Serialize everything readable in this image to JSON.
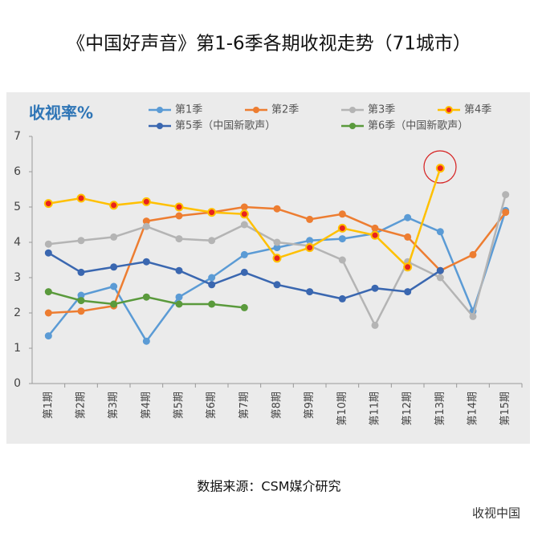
{
  "chart_data": {
    "type": "line",
    "title": "《中国好声音》第1-6季各期收视走势（71城市）",
    "y_label": "收视率%",
    "source": "数据来源：CSM媒介研究",
    "watermark": "收视中国",
    "categories": [
      "第1期",
      "第2期",
      "第3期",
      "第4期",
      "第5期",
      "第6期",
      "第7期",
      "第8期",
      "第9期",
      "第10期",
      "第11期",
      "第12期",
      "第13期",
      "第14期",
      "第15期"
    ],
    "ylim": [
      0,
      7
    ],
    "yticks": [
      0,
      1,
      2,
      3,
      4,
      5,
      6,
      7
    ],
    "grid": false,
    "series": [
      {
        "name": "第1季",
        "color": "#5b9bd5",
        "values": [
          1.35,
          2.5,
          2.75,
          1.2,
          2.45,
          3.0,
          3.65,
          3.85,
          4.05,
          4.1,
          4.25,
          4.7,
          4.3,
          2.05,
          4.9
        ]
      },
      {
        "name": "第2季",
        "color": "#ed7d31",
        "values": [
          2.0,
          2.05,
          2.2,
          4.6,
          4.75,
          4.85,
          5.0,
          4.95,
          4.65,
          4.8,
          4.4,
          4.15,
          3.2,
          3.65,
          4.85
        ]
      },
      {
        "name": "第3季",
        "color": "#b4b4b4",
        "values": [
          3.95,
          4.05,
          4.15,
          4.45,
          4.1,
          4.05,
          4.5,
          4.0,
          3.9,
          3.5,
          1.65,
          3.45,
          3.0,
          1.9,
          5.35
        ]
      },
      {
        "name": "第4季",
        "color": "#ffc000",
        "marker_color": "#e8231e",
        "values": [
          5.1,
          5.25,
          5.05,
          5.15,
          5.0,
          4.85,
          4.8,
          3.55,
          3.85,
          4.4,
          4.2,
          3.3,
          6.1,
          null,
          null
        ]
      },
      {
        "name": "第5季（中国新歌声）",
        "color": "#3a67b0",
        "values": [
          3.7,
          3.15,
          3.3,
          3.45,
          3.2,
          2.8,
          3.15,
          2.8,
          2.6,
          2.4,
          2.7,
          2.6,
          3.2,
          null,
          null
        ]
      },
      {
        "name": "第6季（中国新歌声）",
        "color": "#5a9a3c",
        "values": [
          2.6,
          2.35,
          2.25,
          2.45,
          2.25,
          2.25,
          2.15,
          null,
          null,
          null,
          null,
          null,
          null,
          null,
          null
        ]
      }
    ]
  }
}
